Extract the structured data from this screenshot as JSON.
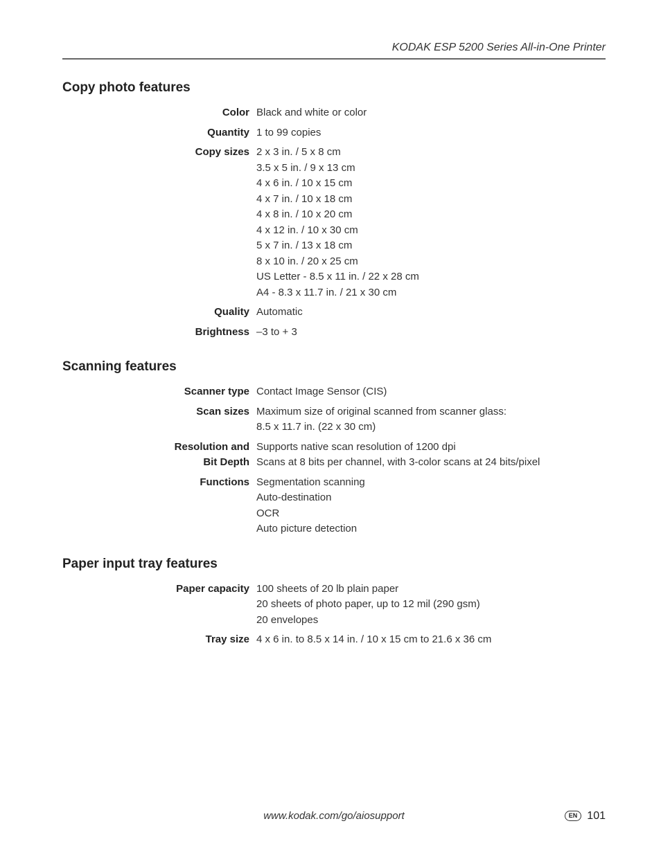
{
  "header": {
    "title": "KODAK ESP 5200 Series All-in-One Printer"
  },
  "sections": {
    "copy": {
      "title": "Copy photo features",
      "rows": {
        "color": {
          "label": "Color",
          "value": "Black and white or color"
        },
        "quantity": {
          "label": "Quantity",
          "value": "1 to 99 copies"
        },
        "copy_sizes": {
          "label": "Copy sizes",
          "lines": [
            "2 x 3 in. / 5 x 8 cm",
            "3.5 x 5 in. / 9 x 13 cm",
            "4 x 6 in. / 10 x 15 cm",
            "4 x 7 in. / 10 x 18 cm",
            "4 x 8 in. / 10 x 20 cm",
            "4 x 12 in. / 10 x 30 cm",
            "5 x 7 in. / 13 x 18 cm",
            "8 x 10 in. / 20 x 25 cm",
            "US Letter - 8.5 x 11 in. / 22 x 28 cm",
            "A4 - 8.3 x 11.7 in. / 21 x 30 cm"
          ]
        },
        "quality": {
          "label": "Quality",
          "value": "Automatic"
        },
        "brightness": {
          "label": "Brightness",
          "value": "–3 to + 3"
        }
      }
    },
    "scan": {
      "title": "Scanning features",
      "rows": {
        "scanner_type": {
          "label": "Scanner type",
          "value": "Contact Image Sensor (CIS)"
        },
        "scan_sizes": {
          "label": "Scan sizes",
          "lines": [
            "Maximum size of original scanned from scanner glass:",
            "8.5 x 11.7 in. (22 x 30 cm)"
          ]
        },
        "res_bit": {
          "label_l1": "Resolution and",
          "label_l2": "Bit Depth",
          "lines": [
            "Supports native scan resolution of 1200 dpi",
            "Scans at 8 bits per channel, with 3-color scans at 24 bits/pixel"
          ]
        },
        "functions": {
          "label": "Functions",
          "lines": [
            "Segmentation scanning",
            "Auto-destination",
            "OCR",
            "Auto picture detection"
          ]
        }
      }
    },
    "tray": {
      "title": "Paper input tray features",
      "rows": {
        "capacity": {
          "label": "Paper capacity",
          "lines": [
            "100 sheets of 20 lb plain paper",
            "20 sheets of photo paper, up to 12 mil (290 gsm)",
            "20 envelopes"
          ]
        },
        "tray_size": {
          "label": "Tray size",
          "value": "4 x 6 in. to 8.5 x 14 in. / 10 x 15 cm to 21.6 x 36 cm"
        }
      }
    }
  },
  "footer": {
    "url": "www.kodak.com/go/aiosupport",
    "lang": "EN",
    "page": "101"
  }
}
